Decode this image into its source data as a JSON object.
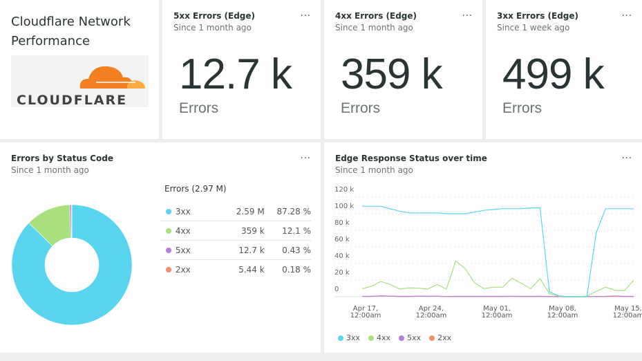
{
  "title_panel": {
    "title": "Cloudflare Network Performance",
    "logo_text": "CLOUDFLARE"
  },
  "billboards": [
    {
      "title": "5xx Errors (Edge)",
      "subtitle": "Since 1 month ago",
      "value": "12.7 k",
      "unit": "Errors"
    },
    {
      "title": "4xx Errors (Edge)",
      "subtitle": "Since 1 month ago",
      "value": "359 k",
      "unit": "Errors"
    },
    {
      "title": "3xx Errors (Edge)",
      "subtitle": "Since 1 week ago",
      "value": "499 k",
      "unit": "Errors"
    }
  ],
  "menu_label": "...",
  "colors": {
    "3xx": "#5ad5f0",
    "4xx": "#a8e07e",
    "5xx": "#b57fd6",
    "2xx": "#f0916e"
  },
  "chart_data": [
    {
      "type": "pie",
      "title": "Errors by Status Code",
      "subtitle": "Since 1 month ago",
      "legend_title": "Errors (2.97 M)",
      "slices": [
        {
          "name": "3xx",
          "value": "2.59 M",
          "percent": 87.28,
          "percent_label": "87.28 %",
          "color": "#5ad5f0"
        },
        {
          "name": "4xx",
          "value": "359 k",
          "percent": 12.1,
          "percent_label": "12.1 %",
          "color": "#a8e07e"
        },
        {
          "name": "5xx",
          "value": "12.7 k",
          "percent": 0.43,
          "percent_label": "0.43 %",
          "color": "#b57fd6"
        },
        {
          "name": "2xx",
          "value": "5.44 k",
          "percent": 0.18,
          "percent_label": "0.18 %",
          "color": "#f0916e"
        }
      ]
    },
    {
      "type": "line",
      "title": "Edge Response Status over time",
      "subtitle": "Since 1 month ago",
      "yticks": [
        "0",
        "20 k",
        "40 k",
        "60 k",
        "80 k",
        "100 k",
        "120 k"
      ],
      "ylim": [
        0,
        120000
      ],
      "xticks": [
        {
          "line1": "Apr 17,",
          "line2": "12:00am"
        },
        {
          "line1": "Apr 24,",
          "line2": "12:00am"
        },
        {
          "line1": "May 01,",
          "line2": "12:00am"
        },
        {
          "line1": "May 08,",
          "line2": "12:00am"
        },
        {
          "line1": "May 15,",
          "line2": "12:00am"
        }
      ],
      "grid": true,
      "legend_placement": "bottom-left",
      "x_start": "Apr 16, 12:00pm",
      "x_interval": "1 day",
      "series": [
        {
          "name": "3xx",
          "color": "#5ad5f0",
          "values": [
            109000,
            109000,
            109000,
            106000,
            103000,
            101000,
            101000,
            101000,
            101000,
            100000,
            100000,
            100000,
            102000,
            104000,
            105000,
            106000,
            106000,
            106000,
            107000,
            107000,
            6000,
            1000,
            0,
            0,
            0,
            77000,
            106000,
            106000,
            106000,
            106000
          ]
        },
        {
          "name": "4xx",
          "color": "#a8e07e",
          "values": [
            9700,
            12500,
            18300,
            14700,
            9200,
            10600,
            10300,
            9200,
            14700,
            9200,
            43000,
            34000,
            16700,
            9700,
            11400,
            11400,
            22200,
            16100,
            9700,
            21700,
            3600,
            800,
            0,
            0,
            800,
            6400,
            11400,
            7800,
            7200,
            19700
          ]
        },
        {
          "name": "5xx",
          "color": "#b57fd6",
          "values": [
            400,
            500,
            800,
            600,
            400,
            400,
            500,
            500,
            500,
            300,
            400,
            400,
            400,
            400,
            400,
            400,
            500,
            400,
            400,
            500,
            200,
            100,
            0,
            0,
            100,
            300,
            400,
            900,
            400,
            400
          ]
        },
        {
          "name": "2xx",
          "color": "#f0916e",
          "values": [
            300,
            300,
            1200,
            700,
            200,
            200,
            600,
            300,
            600,
            200,
            200,
            200,
            200,
            200,
            200,
            200,
            300,
            200,
            200,
            300,
            100,
            0,
            0,
            0,
            0,
            200,
            200,
            300,
            200,
            200
          ]
        }
      ]
    }
  ]
}
